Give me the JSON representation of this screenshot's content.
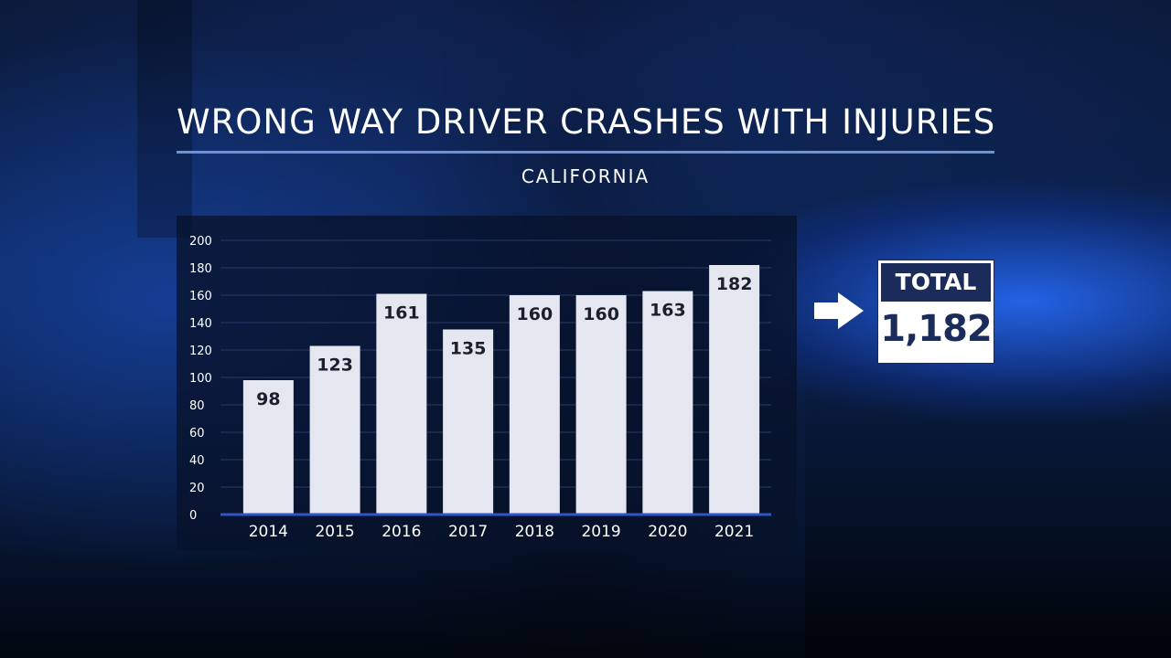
{
  "header": {
    "title": "WRONG WAY DRIVER CRASHES WITH INJURIES",
    "subtitle": "CALIFORNIA"
  },
  "total": {
    "label": "TOTAL",
    "value": "1,182"
  },
  "icons": {
    "arrow": "arrow-right-icon"
  },
  "colors": {
    "bar": "#e4e7ef",
    "bar_label": "#1a1f2e",
    "axis_line": "#2e56c8",
    "gridline": "#2a3a66",
    "accent_rule": "#6f8fd6",
    "total_header": "#1b2b5a"
  },
  "chart_data": {
    "type": "bar",
    "title": "WRONG WAY DRIVER CRASHES WITH INJURIES",
    "subtitle": "CALIFORNIA",
    "xlabel": "",
    "ylabel": "",
    "categories": [
      "2014",
      "2015",
      "2016",
      "2017",
      "2018",
      "2019",
      "2020",
      "2021"
    ],
    "values": [
      98,
      123,
      161,
      135,
      160,
      160,
      163,
      182
    ],
    "value_labels": [
      "98",
      "123",
      "161",
      "135",
      "160",
      "160",
      "163",
      "182"
    ],
    "ylim": [
      0,
      200
    ],
    "yticks": [
      "0",
      "20",
      "40",
      "60",
      "80",
      "100",
      "120",
      "140",
      "160",
      "180",
      "200"
    ],
    "grid": true,
    "legend": "none"
  }
}
